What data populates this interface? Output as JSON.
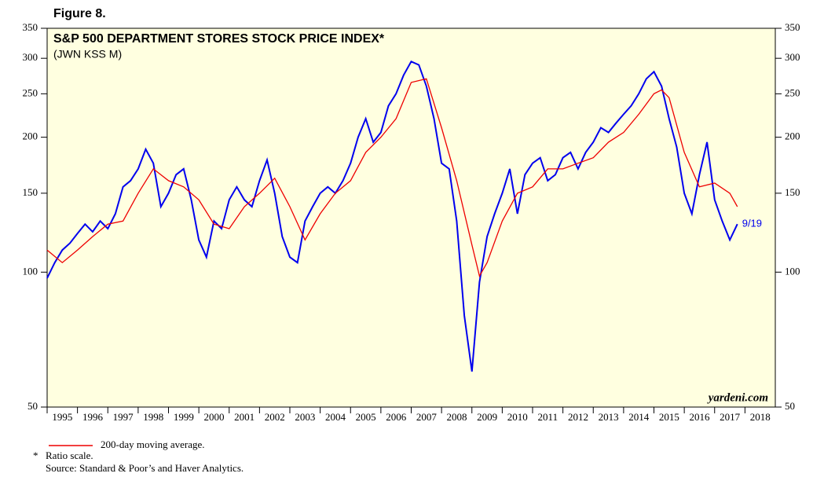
{
  "chart_data": {
    "type": "line",
    "figure_label": "Figure 8.",
    "title": "S&P 500 DEPARTMENT STORES STOCK PRICE INDEX*",
    "subtitle": "(JWN KSS M)",
    "yscale": "log",
    "ylim": [
      50,
      350
    ],
    "yticks": [
      50,
      100,
      150,
      200,
      250,
      300,
      350
    ],
    "xlim": [
      1995,
      2019
    ],
    "xticks": [
      1995,
      1996,
      1997,
      1998,
      1999,
      2000,
      2001,
      2002,
      2003,
      2004,
      2005,
      2006,
      2007,
      2008,
      2009,
      2010,
      2011,
      2012,
      2013,
      2014,
      2015,
      2016,
      2017,
      2018
    ],
    "background": "#ffffe0",
    "series": [
      {
        "color": "#0000ee",
        "x": [
          1995.0,
          1995.25,
          1995.5,
          1995.75,
          1996.0,
          1996.25,
          1996.5,
          1996.75,
          1997.0,
          1997.25,
          1997.5,
          1997.75,
          1998.0,
          1998.25,
          1998.5,
          1998.75,
          1999.0,
          1999.25,
          1999.5,
          1999.75,
          2000.0,
          2000.25,
          2000.5,
          2000.75,
          2001.0,
          2001.25,
          2001.5,
          2001.75,
          2002.0,
          2002.25,
          2002.5,
          2002.75,
          2003.0,
          2003.25,
          2003.5,
          2003.75,
          2004.0,
          2004.25,
          2004.5,
          2004.75,
          2005.0,
          2005.25,
          2005.5,
          2005.75,
          2006.0,
          2006.25,
          2006.5,
          2006.75,
          2007.0,
          2007.25,
          2007.5,
          2007.75,
          2008.0,
          2008.25,
          2008.5,
          2008.75,
          2009.0,
          2009.25,
          2009.5,
          2009.75,
          2010.0,
          2010.25,
          2010.5,
          2010.75,
          2011.0,
          2011.25,
          2011.5,
          2011.75,
          2012.0,
          2012.25,
          2012.5,
          2012.75,
          2013.0,
          2013.25,
          2013.5,
          2013.75,
          2014.0,
          2014.25,
          2014.5,
          2014.75,
          2015.0,
          2015.25,
          2015.5,
          2015.75,
          2016.0,
          2016.25,
          2016.5,
          2016.75,
          2017.0,
          2017.25,
          2017.5,
          2017.75
        ],
        "values": [
          97,
          105,
          112,
          116,
          122,
          128,
          123,
          130,
          125,
          135,
          155,
          160,
          170,
          188,
          175,
          140,
          150,
          165,
          170,
          145,
          118,
          108,
          130,
          125,
          145,
          155,
          145,
          140,
          160,
          178,
          150,
          120,
          108,
          105,
          130,
          140,
          150,
          155,
          150,
          160,
          175,
          200,
          220,
          195,
          205,
          235,
          250,
          275,
          295,
          290,
          260,
          220,
          175,
          170,
          130,
          80,
          60,
          95,
          120,
          135,
          150,
          170,
          135,
          165,
          175,
          180,
          160,
          165,
          180,
          185,
          170,
          185,
          195,
          210,
          205,
          215,
          225,
          235,
          250,
          270,
          280,
          260,
          220,
          190,
          150,
          135,
          165,
          195,
          145,
          130,
          118,
          128
        ]
      },
      {
        "name": "200-day moving average.",
        "color": "#ee0000",
        "x": [
          1995.0,
          1995.5,
          1996.0,
          1996.5,
          1997.0,
          1997.5,
          1998.0,
          1998.5,
          1999.0,
          1999.5,
          2000.0,
          2000.5,
          2001.0,
          2001.5,
          2002.0,
          2002.5,
          2003.0,
          2003.5,
          2004.0,
          2004.5,
          2005.0,
          2005.5,
          2006.0,
          2006.5,
          2007.0,
          2007.5,
          2008.0,
          2008.5,
          2009.0,
          2009.25,
          2009.5,
          2010.0,
          2010.5,
          2011.0,
          2011.5,
          2012.0,
          2012.5,
          2013.0,
          2013.5,
          2014.0,
          2014.5,
          2015.0,
          2015.25,
          2015.5,
          2016.0,
          2016.5,
          2017.0,
          2017.5,
          2017.75
        ],
        "values": [
          112,
          105,
          112,
          120,
          128,
          130,
          150,
          170,
          160,
          155,
          145,
          128,
          125,
          140,
          150,
          162,
          140,
          118,
          135,
          150,
          160,
          185,
          200,
          220,
          265,
          270,
          210,
          160,
          115,
          98,
          105,
          130,
          150,
          155,
          170,
          170,
          175,
          180,
          195,
          205,
          225,
          250,
          255,
          245,
          185,
          155,
          158,
          150,
          140
        ]
      }
    ],
    "end_label": "9/19",
    "watermark": "yardeni.com",
    "footnote": "Ratio scale.",
    "footnote_mark": "*",
    "source": "Source: Standard & Poor’s and Haver Analytics."
  }
}
